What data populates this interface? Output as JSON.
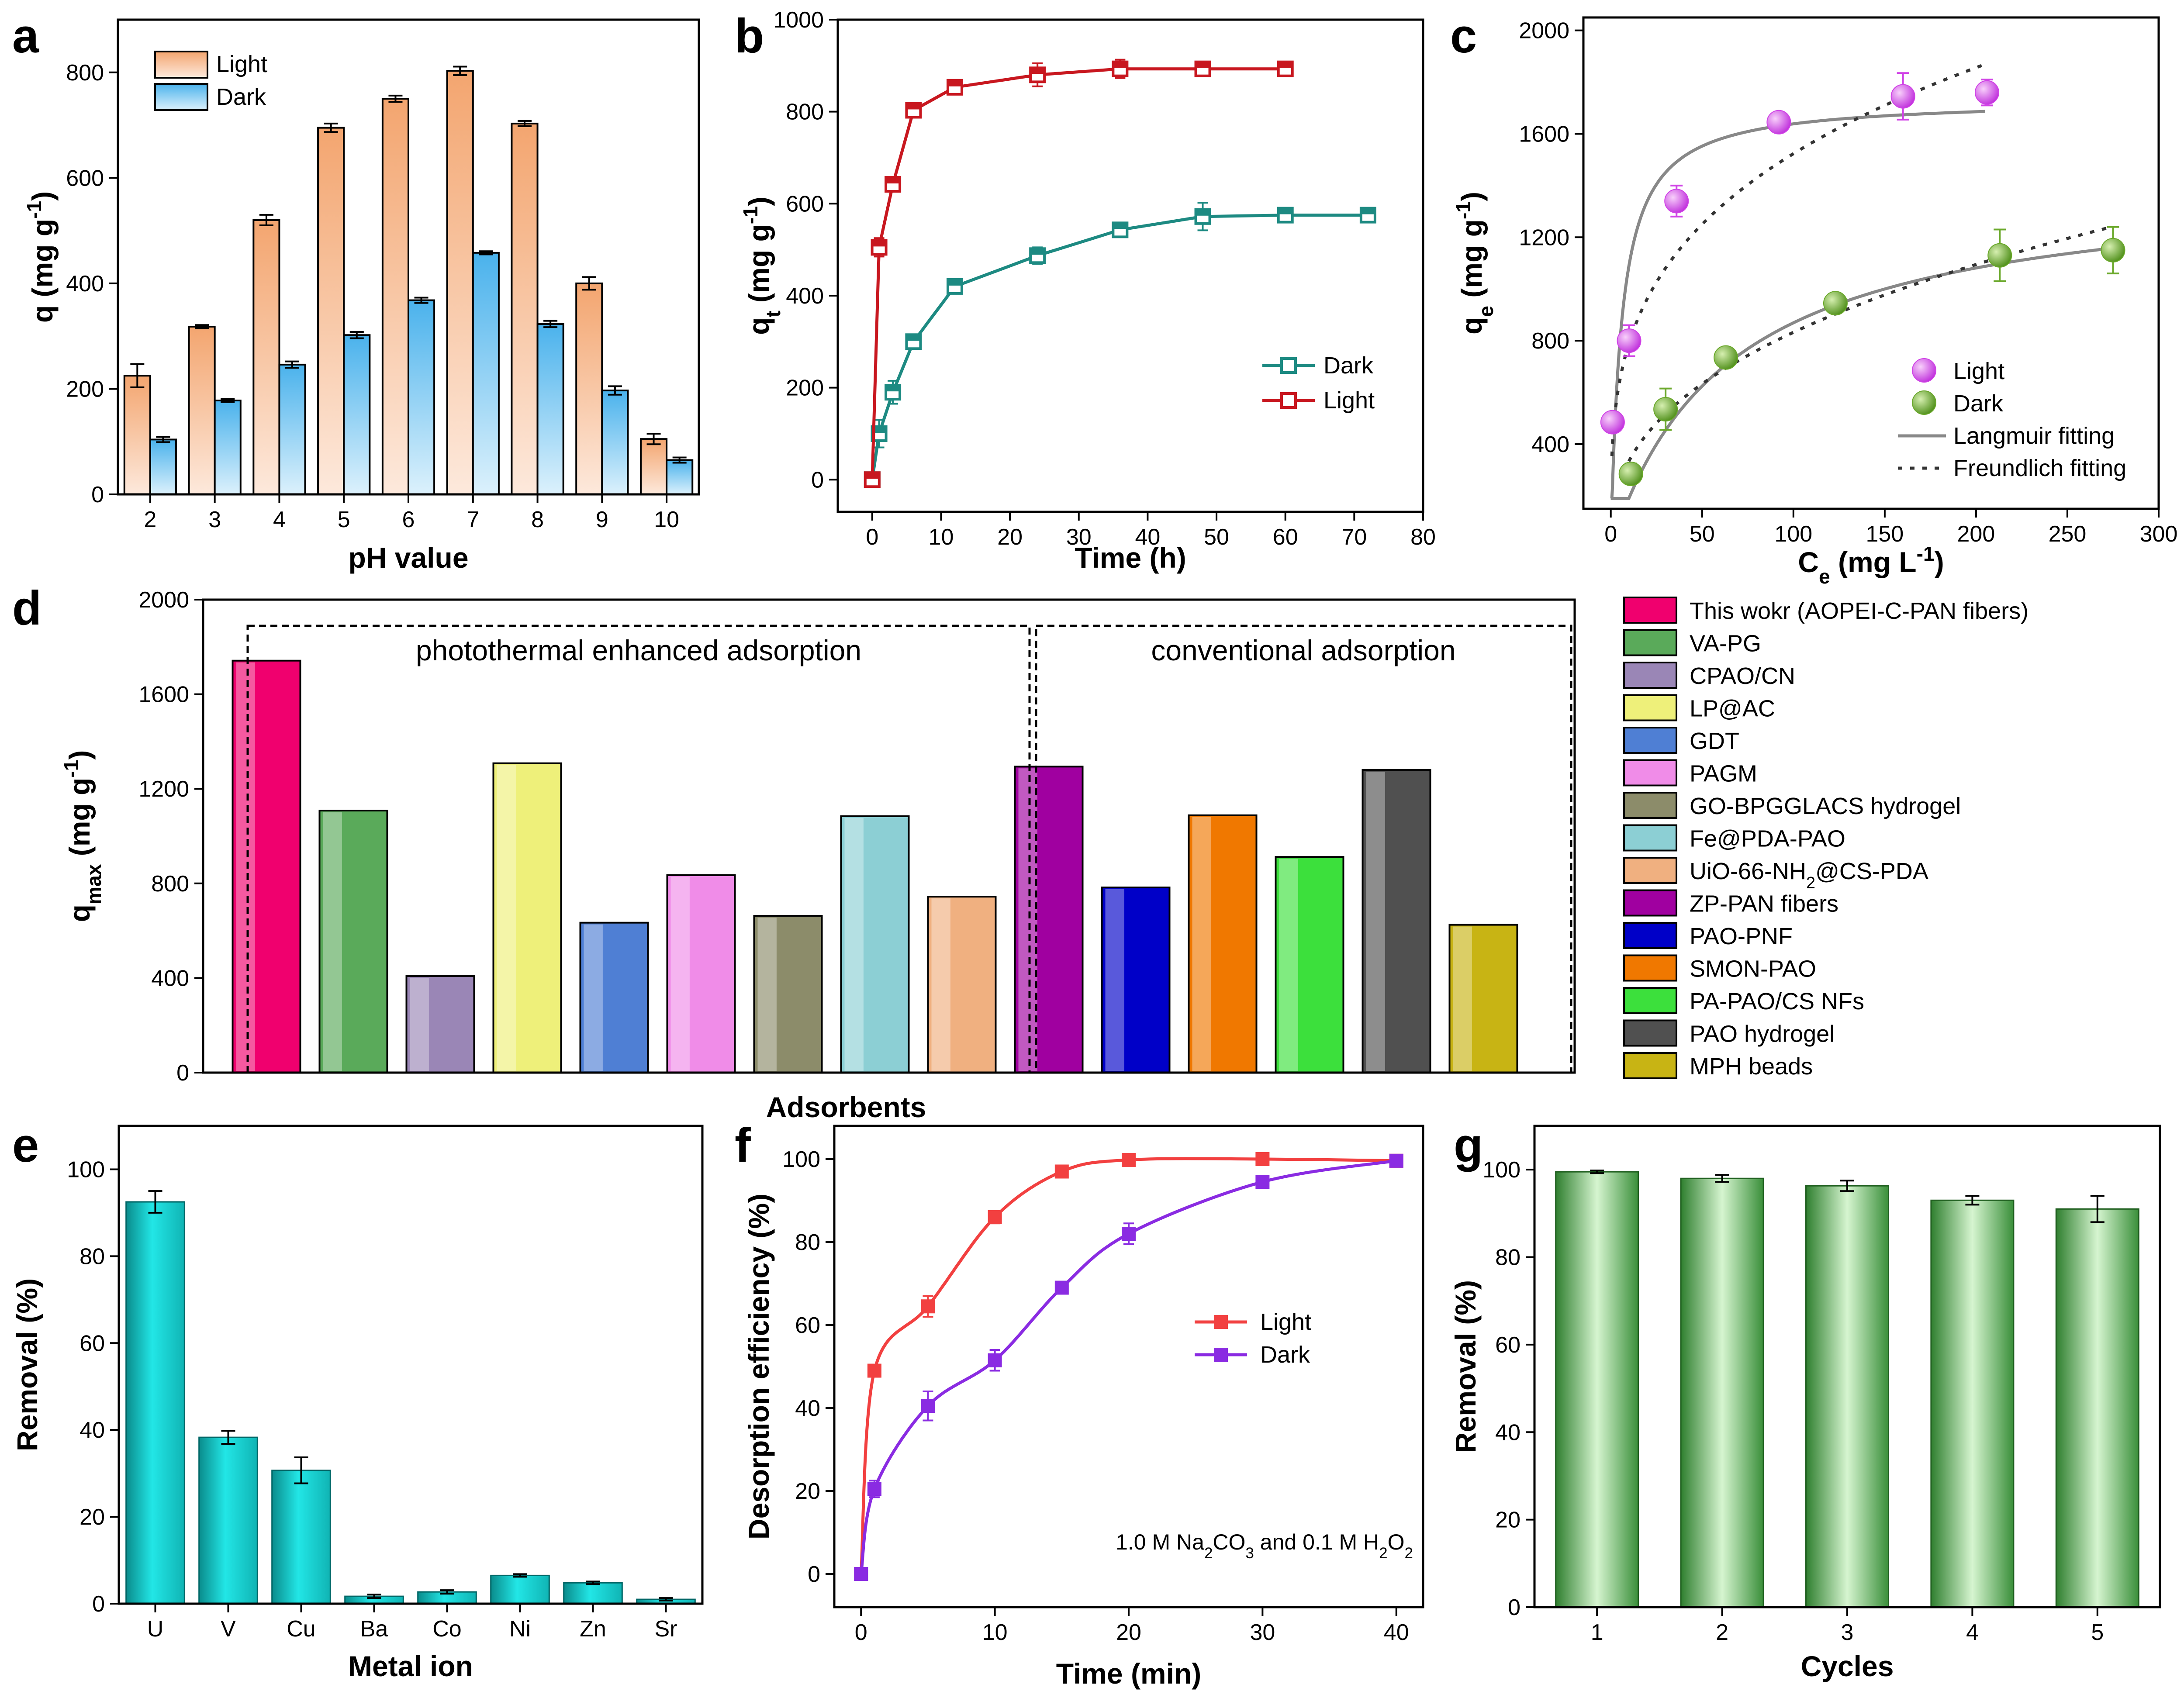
{
  "figure": {
    "panel_labels": [
      "a",
      "b",
      "c",
      "d",
      "e",
      "f",
      "g"
    ]
  },
  "colors": {
    "light_bar": "#f3a56f",
    "dark_bar": "#4ab2ec",
    "b_light": "#c8171f",
    "b_dark": "#1d8a82",
    "c_light": "#d042e6",
    "c_dark": "#6aa82a",
    "e_bar": "#18d6d6",
    "f_light": "#f24040",
    "f_dark": "#8a2be2",
    "g_bar": "#3f9b3f",
    "fit_line": "#888888"
  },
  "chart_data": [
    {
      "panel": "a",
      "type": "bar",
      "xlabel": "pH value",
      "ylabel": "q (mg g",
      "ylabel_sup": "-1",
      "ylabel_end": ")",
      "ylim": [
        0,
        900
      ],
      "yticks": [
        0,
        200,
        400,
        600,
        800
      ],
      "categories": [
        "2",
        "3",
        "4",
        "5",
        "6",
        "7",
        "8",
        "9",
        "10"
      ],
      "legend_position": "top-left",
      "series": [
        {
          "name": "Light",
          "values": [
            225,
            318,
            520,
            695,
            750,
            803,
            703,
            400,
            105
          ],
          "errors": [
            22,
            3,
            10,
            8,
            6,
            8,
            5,
            12,
            10
          ]
        },
        {
          "name": "Dark",
          "values": [
            104,
            178,
            246,
            302,
            368,
            458,
            323,
            197,
            65
          ],
          "errors": [
            5,
            3,
            6,
            6,
            5,
            3,
            6,
            8,
            5
          ]
        }
      ]
    },
    {
      "panel": "b",
      "type": "line",
      "xlabel": "Time (h)",
      "ylabel": "q",
      "ylabel_sub": "t",
      "ylabel_rest": " (mg g",
      "ylabel_sup": "-1",
      "ylabel_end": ")",
      "xlim": [
        -5,
        80
      ],
      "ylim": [
        -70,
        1000
      ],
      "xticks": [
        0,
        10,
        20,
        30,
        40,
        50,
        60,
        70,
        80
      ],
      "yticks": [
        0,
        200,
        400,
        600,
        800,
        1000
      ],
      "legend_position": "bottom-right",
      "series": [
        {
          "name": "Dark",
          "x": [
            0,
            1,
            3,
            6,
            12,
            24,
            36,
            48,
            60,
            72
          ],
          "y": [
            0,
            100,
            190,
            300,
            420,
            487,
            543,
            572,
            575,
            575
          ],
          "errors": [
            5,
            30,
            25,
            10,
            12,
            18,
            15,
            30,
            15,
            15
          ]
        },
        {
          "name": "Light",
          "x": [
            0,
            1,
            3,
            6,
            12,
            24,
            36,
            48,
            60
          ],
          "y": [
            0,
            505,
            642,
            803,
            853,
            880,
            893,
            893,
            893
          ],
          "errors": [
            5,
            20,
            15,
            15,
            15,
            25,
            20,
            15,
            15
          ]
        }
      ]
    },
    {
      "panel": "c",
      "type": "scatter",
      "xlabel": "C",
      "xlabel_sub": "e",
      "xlabel_rest": " (mg L",
      "xlabel_sup": "-1",
      "xlabel_end": ")",
      "ylabel": "q",
      "ylabel_sub": "e",
      "ylabel_rest": " (mg g",
      "ylabel_sup": "-1",
      "ylabel_end": ")",
      "xlim": [
        -15,
        300
      ],
      "ylim": [
        150,
        2050
      ],
      "xticks": [
        0,
        50,
        100,
        150,
        200,
        250,
        300
      ],
      "yticks": [
        400,
        800,
        1200,
        1600,
        2000
      ],
      "legend_position": "bottom-right",
      "series": [
        {
          "name": "Light",
          "x": [
            1,
            10,
            36,
            92,
            160,
            206
          ],
          "y": [
            485,
            800,
            1340,
            1645,
            1745,
            1760
          ],
          "errors": [
            30,
            60,
            60,
            30,
            90,
            50
          ]
        },
        {
          "name": "Dark",
          "x": [
            11,
            30,
            63,
            123,
            213,
            275
          ],
          "y": [
            285,
            535,
            735,
            945,
            1130,
            1150
          ],
          "errors": [
            40,
            80,
            30,
            30,
            100,
            90
          ]
        }
      ],
      "fits": [
        {
          "name": "Langmuir fitting",
          "style": "solid",
          "curves": [
            {
              "model": "langmuir",
              "qmax": 1735,
              "k": 0.17,
              "x0": 0,
              "x1": 205
            },
            {
              "model": "langmuir",
              "qmax": 1430,
              "k": 0.0155,
              "x0": 0,
              "x1": 275
            }
          ]
        },
        {
          "name": "Freundlich fitting",
          "style": "dotted",
          "curves": [
            {
              "model": "freundlich",
              "kf": 410,
              "n": 0.285,
              "x0": 0.6,
              "x1": 205
            },
            {
              "model": "freundlich",
              "kf": 135,
              "n": 0.395,
              "x0": 7,
              "x1": 275
            }
          ]
        }
      ]
    },
    {
      "panel": "d",
      "type": "bar",
      "xlabel": "Adsorbents",
      "ylabel": "q",
      "ylabel_sub": "max",
      "ylabel_rest": " (mg g",
      "ylabel_sup": "-1",
      "ylabel_end": ")",
      "ylim": [
        0,
        2000
      ],
      "yticks": [
        0,
        400,
        800,
        1200,
        1600,
        2000
      ],
      "groups": [
        "photothermal enhanced adsorption",
        "conventional adsorption"
      ],
      "legend_position": "right",
      "bars": [
        {
          "name": "This wokr (AOPEI-C-PAN fibers)",
          "value": 1742,
          "color": "#f0006e"
        },
        {
          "name": "VA-PG",
          "value": 1108,
          "color": "#5aaa5a"
        },
        {
          "name": "CPAO/CN",
          "value": 408,
          "color": "#9a86b6"
        },
        {
          "name": "LP@AC",
          "value": 1308,
          "color": "#eef07a"
        },
        {
          "name": "GDT",
          "value": 634,
          "color": "#4f7fd4"
        },
        {
          "name": "PAGM",
          "value": 835,
          "color": "#f08ce8"
        },
        {
          "name": "GO-BPGGLACS hydrogel",
          "value": 663,
          "color": "#8c8c6a"
        },
        {
          "name": "Fe@PDA-PAO",
          "value": 1084,
          "color": "#8ccfd4"
        },
        {
          "name": "UiO-66-NH",
          "name_sub": "2",
          "name_rest": "@CS-PDA",
          "value": 744,
          "color": "#f0b080"
        },
        {
          "name": "ZP-PAN fibers",
          "value": 1294,
          "color": "#a000a0"
        },
        {
          "name": "PAO-PNF",
          "value": 783,
          "color": "#0000c8"
        },
        {
          "name": "SMON-PAO",
          "value": 1088,
          "color": "#f07800"
        },
        {
          "name": "PA-PAO/CS NFs",
          "value": 912,
          "color": "#3ce03c"
        },
        {
          "name": "PAO hydrogel",
          "value": 1280,
          "color": "#505050"
        },
        {
          "name": "MPH beads",
          "value": 625,
          "color": "#c8b414"
        }
      ]
    },
    {
      "panel": "e",
      "type": "bar",
      "xlabel": "Metal ion",
      "ylabel": "Removal (%)",
      "ylim": [
        0,
        110
      ],
      "yticks": [
        0,
        20,
        40,
        60,
        80,
        100
      ],
      "categories": [
        "U",
        "V",
        "Cu",
        "Ba",
        "Co",
        "Ni",
        "Zn",
        "Sr"
      ],
      "values": [
        92.5,
        38.3,
        30.7,
        1.7,
        2.7,
        6.5,
        4.8,
        1.0
      ],
      "errors": [
        2.5,
        1.5,
        3,
        0.4,
        0.4,
        0.3,
        0.3,
        0.3
      ]
    },
    {
      "panel": "f",
      "type": "line",
      "xlabel": "Time (min)",
      "ylabel": "Desorption efficiency (%)",
      "xlim": [
        -2,
        42
      ],
      "ylim": [
        -8,
        108
      ],
      "xticks": [
        0,
        10,
        20,
        30,
        40
      ],
      "yticks": [
        0,
        20,
        40,
        60,
        80,
        100
      ],
      "legend_position": "center-right",
      "annotation": {
        "pre": "1.0 M Na",
        "sub1": "2",
        "mid": "CO",
        "sub2": "3",
        "post": " and 0.1 M H",
        "sub3": "2",
        "mid2": "O",
        "sub4": "2"
      },
      "series": [
        {
          "name": "Light",
          "x": [
            0,
            1,
            5,
            10,
            15,
            20,
            30,
            40
          ],
          "y": [
            0,
            49,
            64.5,
            86,
            97,
            99.8,
            100,
            99.6
          ],
          "errors": [
            0.5,
            1,
            2.5,
            1.5,
            1,
            0.5,
            0.5,
            0.5
          ]
        },
        {
          "name": "Dark",
          "x": [
            0,
            1,
            5,
            10,
            15,
            20,
            30,
            40
          ],
          "y": [
            0,
            20.5,
            40.5,
            51.5,
            69,
            82,
            94.5,
            99.6
          ],
          "errors": [
            0.5,
            2,
            3.5,
            2.5,
            1,
            2.5,
            0.8,
            0.5
          ]
        }
      ]
    },
    {
      "panel": "g",
      "type": "bar",
      "xlabel": "Cycles",
      "ylabel": "Removal (%)",
      "ylim": [
        0,
        110
      ],
      "yticks": [
        0,
        20,
        40,
        60,
        80,
        100
      ],
      "categories": [
        "1",
        "2",
        "3",
        "4",
        "5"
      ],
      "values": [
        99.5,
        98,
        96.3,
        93,
        91
      ],
      "errors": [
        0.3,
        0.8,
        1.2,
        1,
        3
      ]
    }
  ]
}
